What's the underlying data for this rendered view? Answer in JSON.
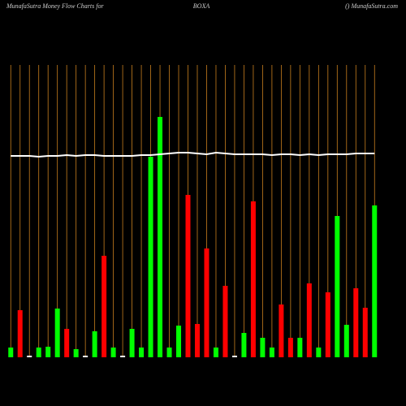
{
  "chart_data": {
    "type": "bar",
    "title": "MunafaSutra  Money Flow  Charts for",
    "subtitle": "BOXA",
    "source": "() MunafaSutra.com",
    "categories": [
      null,
      null,
      null,
      null,
      null,
      null,
      null,
      null,
      null,
      null,
      null,
      null,
      null,
      null,
      null,
      null,
      null,
      null,
      null,
      null,
      null,
      null,
      null,
      null,
      null,
      null,
      null,
      null,
      null,
      null,
      null,
      null,
      null,
      null,
      null,
      null,
      null,
      null,
      null,
      null
    ],
    "values": [
      12,
      58,
      2,
      12,
      13,
      60,
      35,
      10,
      2,
      32,
      125,
      12,
      2,
      35,
      12,
      247,
      296,
      12,
      39,
      200,
      41,
      134,
      12,
      88,
      2,
      30,
      192,
      24,
      12,
      65,
      24,
      24,
      91,
      12,
      80,
      174,
      40,
      85,
      61,
      187
    ],
    "colors": [
      "#00ff00",
      "#ff0000",
      "#ffffff",
      "#00ff00",
      "#00ff00",
      "#00ff00",
      "#ff0000",
      "#00ff00",
      "#ffffff",
      "#00ff00",
      "#ff0000",
      "#00ff00",
      "#ffffff",
      "#00ff00",
      "#00ff00",
      "#00ff00",
      "#00ff00",
      "#00ff00",
      "#00ff00",
      "#ff0000",
      "#ff0000",
      "#ff0000",
      "#00ff00",
      "#ff0000",
      "#ffffff",
      "#00ff00",
      "#ff0000",
      "#00ff00",
      "#00ff00",
      "#ff0000",
      "#ff0000",
      "#00ff00",
      "#ff0000",
      "#00ff00",
      "#ff0000",
      "#00ff00",
      "#00ff00",
      "#ff0000",
      "#ff0000",
      "#00ff00"
    ],
    "line": {
      "color": "#ffffff",
      "values": [
        248,
        248,
        248,
        247,
        248,
        248,
        249,
        248,
        249,
        249,
        248,
        248,
        248,
        248,
        249,
        249,
        250,
        251,
        252,
        252,
        251,
        250,
        252,
        251,
        250,
        250,
        250,
        250,
        249,
        250,
        250,
        249,
        250,
        249,
        250,
        250,
        250,
        251,
        251,
        251
      ]
    },
    "ylim": [
      0,
      360
    ],
    "grid": true,
    "grid_color": "#c87f1e"
  }
}
